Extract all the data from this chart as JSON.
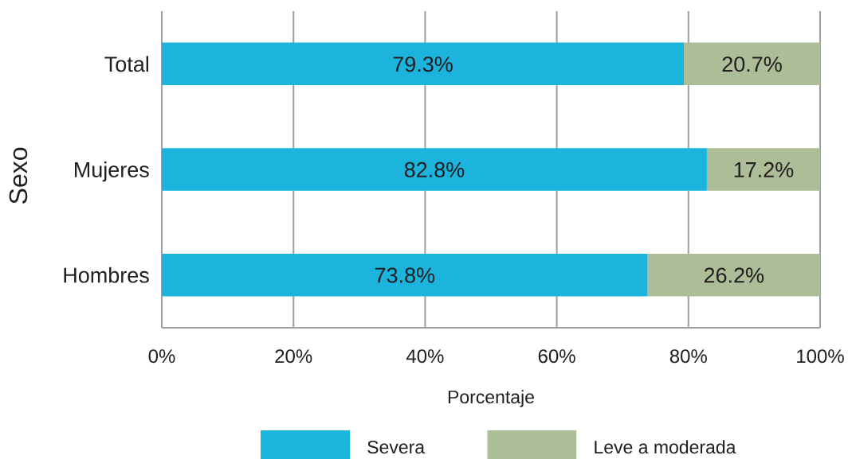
{
  "chart_data": {
    "type": "bar",
    "orientation": "horizontal",
    "stacked": true,
    "categories": [
      "Total",
      "Mujeres",
      "Hombres"
    ],
    "series": [
      {
        "name": "Severa",
        "color": "#1cb4dd",
        "values": [
          79.3,
          82.8,
          73.8
        ],
        "value_labels": [
          "79.3%",
          "82.8%",
          "73.8%"
        ]
      },
      {
        "name": "Leve a moderada",
        "color": "#acbd98",
        "values": [
          20.7,
          17.2,
          26.2
        ],
        "value_labels": [
          "20.7%",
          "17.2%",
          "26.2%"
        ]
      }
    ],
    "xlim": [
      0,
      100
    ],
    "xticks": [
      {
        "value": 0,
        "label": "0%"
      },
      {
        "value": 20,
        "label": "20%"
      },
      {
        "value": 40,
        "label": "40%"
      },
      {
        "value": 60,
        "label": "60%"
      },
      {
        "value": 80,
        "label": "80%"
      },
      {
        "value": 100,
        "label": "100%"
      }
    ],
    "xlabel": "Porcentaje",
    "ylabel": "Sexo",
    "grid": "x",
    "legend": "bottom"
  }
}
